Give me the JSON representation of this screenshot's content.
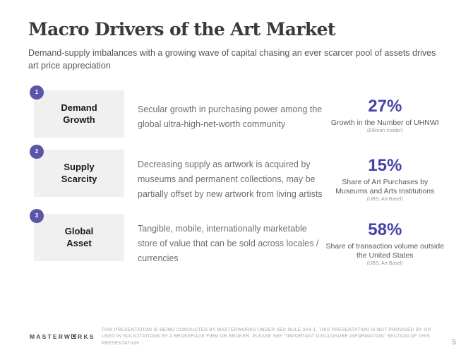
{
  "slide": {
    "title": "Macro Drivers of the Art Market",
    "subtitle": "Demand-supply imbalances with a growing wave of capital chasing an ever scarcer pool of assets drives art price appreciation"
  },
  "drivers": [
    {
      "number": "1",
      "label": "Demand Growth",
      "description": "Secular growth in purchasing power among the global ultra-high-net-worth community",
      "stat": "27%",
      "stat_caption": "Growth in the Number of UHNWI",
      "stat_source": "(Elliman Insider)"
    },
    {
      "number": "2",
      "label": "Supply Scarcity",
      "description": "Decreasing supply as artwork is acquired by museums and permanent collections, may be partially offset by new artwork from living artists",
      "stat": "15%",
      "stat_caption": "Share of Art Purchases by Museums and Arts Institutions",
      "stat_source": "(UBS, Art Basel)"
    },
    {
      "number": "3",
      "label": "Global Asset",
      "description": "Tangible, mobile, internationally marketable store of value that can be sold across locales / currencies",
      "stat": "58%",
      "stat_caption": "Share of transaction volume outside the United States",
      "stat_source": "(UBS, Art Basel)"
    }
  ],
  "footer": {
    "logo_prefix": "MASTERW",
    "logo_suffix": "RKS",
    "disclaimer": "THIS PRESENTATION IS BEING CONDUCTED BY MASTERWORKS UNDER SEC RULE 3A4-1. THIS PRESENTATION IS NOT PROVIDED BY OR USED IN SOLICITATIONS BY A BROKERAGE FIRM OR BROKER. PLEASE SEE \"IMPORTANT DISCLOSURE INFORMATION\" SECTION OF THIS PRESENTATION",
    "page_number": "5"
  },
  "colors": {
    "accent": "#5b55a8",
    "stat": "#4643a7",
    "box_bg": "#f1f0f0"
  }
}
